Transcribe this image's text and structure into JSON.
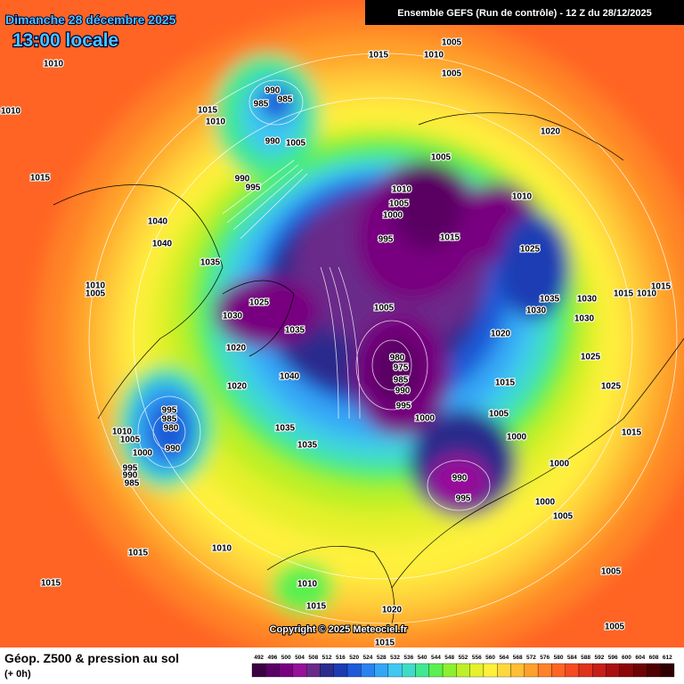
{
  "header": {
    "date": "Dimanche 28 décembre 2025",
    "time": "13:00 locale",
    "run": "Ensemble GEFS  (Run de contrôle)  -  12 Z du 28/12/2025"
  },
  "map": {
    "pressure_labels": [
      1020,
      1005,
      1015,
      1010,
      1005,
      990,
      985,
      985,
      1015,
      1010,
      990,
      1005,
      1020,
      1005,
      990,
      995,
      1010,
      1005,
      1000,
      1010,
      995,
      1015,
      1040,
      1040,
      1025,
      1035,
      1010,
      1005,
      1015,
      1010,
      1015,
      1035,
      1030,
      1030,
      1030,
      1025,
      1005,
      1030,
      1035,
      1020,
      1020,
      1025,
      980,
      975,
      985,
      990,
      1040,
      1015,
      1020,
      1025,
      995,
      995,
      985,
      980,
      1000,
      1005,
      1010,
      1005,
      1035,
      990,
      1035,
      1000,
      1000,
      1015,
      995,
      990,
      985,
      1000,
      990,
      995,
      1000,
      1005,
      1010,
      1015,
      1015,
      1010,
      1015,
      1020,
      1005,
      1005,
      1015,
      1010,
      1010,
      1015
    ]
  },
  "copyright": "Copyright © 2025 Meteociel.fr",
  "footer": {
    "title": "Géop. Z500 & pression au sol",
    "subtitle": "(+ 0h)"
  },
  "legend": {
    "values": [
      492,
      496,
      500,
      504,
      508,
      512,
      516,
      520,
      524,
      528,
      532,
      536,
      540,
      544,
      548,
      552,
      556,
      560,
      564,
      568,
      572,
      576,
      580,
      584,
      588,
      592,
      596,
      600,
      604,
      608,
      612
    ],
    "colors": [
      "#3c0044",
      "#5a0064",
      "#780080",
      "#96109a",
      "#6a2a8a",
      "#2c2c8c",
      "#1c3cb4",
      "#1e5ad8",
      "#2a82f0",
      "#34a6f6",
      "#40c8f0",
      "#3edcc8",
      "#40e890",
      "#5af050",
      "#8cf030",
      "#bcf028",
      "#e6f02c",
      "#fff03c",
      "#ffd83c",
      "#ffbe34",
      "#ffa02c",
      "#ff8228",
      "#ff6424",
      "#f64a20",
      "#e0321c",
      "#c81e18",
      "#aa1010",
      "#8c0808",
      "#6e0404",
      "#500000",
      "#300000"
    ]
  }
}
